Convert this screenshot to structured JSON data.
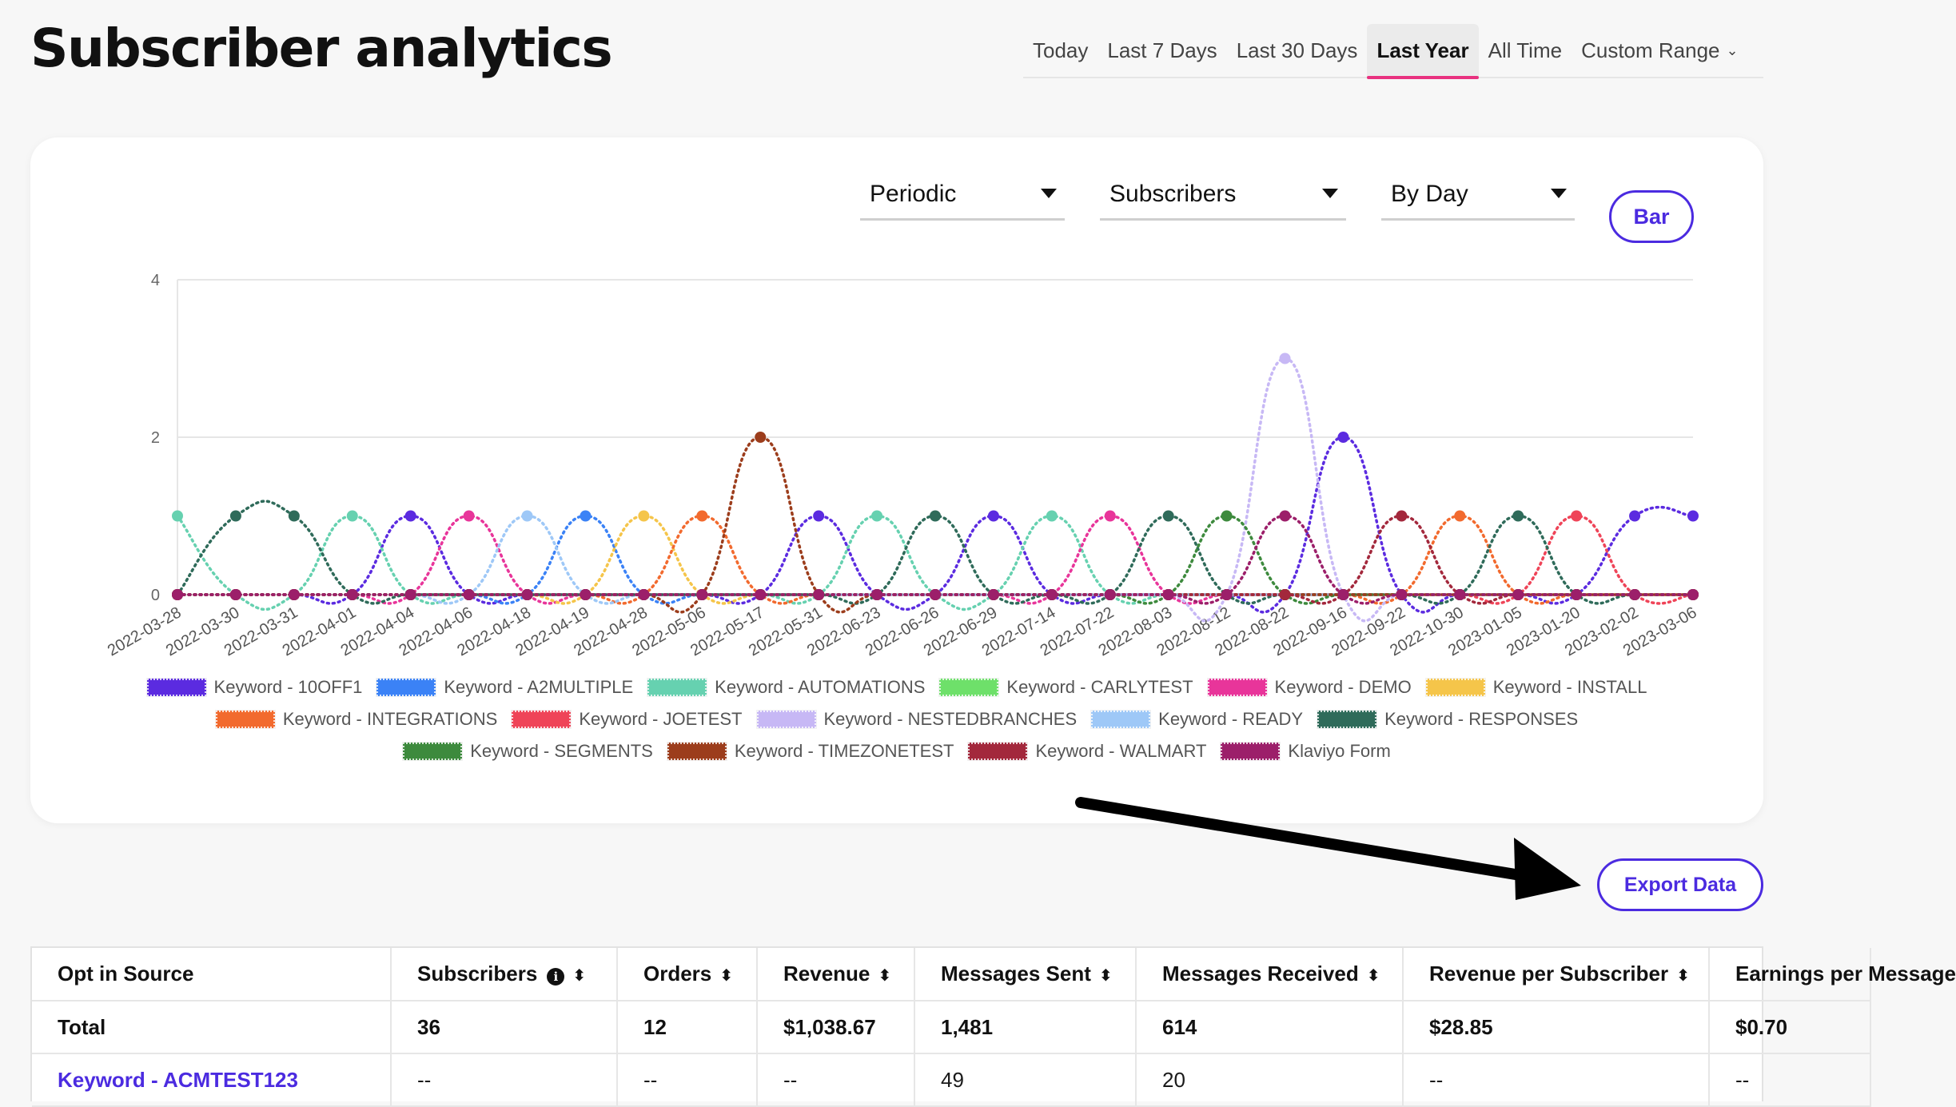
{
  "page": {
    "title": "Subscriber analytics"
  },
  "range_tabs": {
    "items": [
      {
        "label": "Today",
        "active": false
      },
      {
        "label": "Last 7 Days",
        "active": false
      },
      {
        "label": "Last 30 Days",
        "active": false
      },
      {
        "label": "Last Year",
        "active": true
      },
      {
        "label": "All Time",
        "active": false
      },
      {
        "label": "Custom Range",
        "active": false,
        "dropdown": true
      }
    ]
  },
  "controls": {
    "periodic": "Periodic",
    "metric": "Subscribers",
    "interval": "By Day",
    "chart_toggle": "Bar"
  },
  "chart_data": {
    "type": "line",
    "title": "",
    "xlabel": "",
    "ylabel": "",
    "ylim": [
      0,
      4
    ],
    "yticks": [
      "0",
      "2",
      "4"
    ],
    "categories": [
      "2022-03-28",
      "2022-03-30",
      "2022-03-31",
      "2022-04-01",
      "2022-04-04",
      "2022-04-06",
      "2022-04-18",
      "2022-04-19",
      "2022-04-28",
      "2022-05-06",
      "2022-05-17",
      "2022-05-31",
      "2022-06-23",
      "2022-06-26",
      "2022-06-29",
      "2022-07-14",
      "2022-07-22",
      "2022-08-03",
      "2022-08-12",
      "2022-08-22",
      "2022-09-16",
      "2022-09-22",
      "2022-10-30",
      "2023-01-05",
      "2023-01-20",
      "2023-02-02",
      "2023-03-06"
    ],
    "series": [
      {
        "name": "Keyword - 10OFF1",
        "color": "#5b2be0",
        "values": [
          0,
          0,
          0,
          0,
          1,
          0,
          0,
          0,
          0,
          0,
          0,
          1,
          0,
          0,
          1,
          0,
          0,
          0,
          0,
          0,
          2,
          0,
          0,
          0,
          0,
          1,
          1
        ]
      },
      {
        "name": "Keyword - A2MULTIPLE",
        "color": "#3b82f6",
        "values": [
          0,
          0,
          0,
          0,
          0,
          0,
          0,
          1,
          0,
          0,
          0,
          0,
          0,
          0,
          0,
          0,
          0,
          0,
          0,
          0,
          0,
          0,
          0,
          0,
          0,
          0,
          0
        ]
      },
      {
        "name": "Keyword - AUTOMATIONS",
        "color": "#66d1b0",
        "values": [
          1,
          0,
          0,
          1,
          0,
          0,
          0,
          0,
          0,
          0,
          0,
          0,
          1,
          0,
          0,
          1,
          0,
          0,
          0,
          0,
          0,
          0,
          0,
          0,
          0,
          0,
          0
        ]
      },
      {
        "name": "Keyword - CARLYTEST",
        "color": "#6ee06a",
        "values": [
          0,
          0,
          0,
          0,
          0,
          0,
          0,
          0,
          0,
          0,
          0,
          0,
          0,
          0,
          0,
          0,
          0,
          0,
          0,
          0,
          0,
          0,
          0,
          0,
          0,
          0,
          0
        ]
      },
      {
        "name": "Keyword - DEMO",
        "color": "#e8359a",
        "values": [
          0,
          0,
          0,
          0,
          0,
          1,
          0,
          0,
          0,
          0,
          0,
          0,
          0,
          0,
          0,
          0,
          1,
          0,
          0,
          0,
          0,
          0,
          0,
          0,
          0,
          0,
          0
        ]
      },
      {
        "name": "Keyword - INSTALL",
        "color": "#f5c54a",
        "values": [
          0,
          0,
          0,
          0,
          0,
          0,
          0,
          0,
          1,
          0,
          0,
          0,
          0,
          0,
          0,
          0,
          0,
          0,
          0,
          0,
          0,
          0,
          0,
          0,
          0,
          0,
          0
        ]
      },
      {
        "name": "Keyword - INTEGRATIONS",
        "color": "#f26a2e",
        "values": [
          0,
          0,
          0,
          0,
          0,
          0,
          0,
          0,
          0,
          1,
          0,
          0,
          0,
          0,
          0,
          0,
          0,
          0,
          0,
          0,
          0,
          0,
          1,
          0,
          0,
          0,
          0
        ]
      },
      {
        "name": "Keyword - JOETEST",
        "color": "#ef4458",
        "values": [
          0,
          0,
          0,
          0,
          0,
          0,
          0,
          0,
          0,
          0,
          0,
          0,
          0,
          0,
          0,
          0,
          0,
          0,
          0,
          0,
          0,
          0,
          0,
          0,
          1,
          0,
          0
        ]
      },
      {
        "name": "Keyword - NESTEDBRANCHES",
        "color": "#c7b8f5",
        "values": [
          0,
          0,
          0,
          0,
          0,
          0,
          0,
          0,
          0,
          0,
          0,
          0,
          0,
          0,
          0,
          0,
          0,
          0,
          0,
          3,
          0,
          0,
          0,
          0,
          0,
          0,
          0
        ]
      },
      {
        "name": "Keyword - READY",
        "color": "#9ec8f7",
        "values": [
          0,
          0,
          0,
          0,
          0,
          0,
          1,
          0,
          0,
          0,
          0,
          0,
          0,
          0,
          0,
          0,
          0,
          0,
          0,
          0,
          0,
          0,
          0,
          0,
          0,
          0,
          0
        ]
      },
      {
        "name": "Keyword - RESPONSES",
        "color": "#2f6b5a",
        "values": [
          0,
          1,
          1,
          0,
          0,
          0,
          0,
          0,
          0,
          0,
          0,
          0,
          0,
          1,
          0,
          0,
          0,
          1,
          0,
          0,
          0,
          0,
          0,
          1,
          0,
          0,
          0
        ]
      },
      {
        "name": "Keyword - SEGMENTS",
        "color": "#3d8a3d",
        "values": [
          0,
          0,
          0,
          0,
          0,
          0,
          0,
          0,
          0,
          0,
          0,
          0,
          0,
          0,
          0,
          0,
          0,
          0,
          1,
          0,
          0,
          0,
          0,
          0,
          0,
          0,
          0
        ]
      },
      {
        "name": "Keyword - TIMEZONETEST",
        "color": "#9c3d1c",
        "values": [
          0,
          0,
          0,
          0,
          0,
          0,
          0,
          0,
          0,
          0,
          2,
          0,
          0,
          0,
          0,
          0,
          0,
          0,
          0,
          0,
          0,
          0,
          0,
          0,
          0,
          0,
          0
        ]
      },
      {
        "name": "Keyword - WALMART",
        "color": "#a3283c",
        "values": [
          0,
          0,
          0,
          0,
          0,
          0,
          0,
          0,
          0,
          0,
          0,
          0,
          0,
          0,
          0,
          0,
          0,
          0,
          0,
          0,
          0,
          1,
          0,
          0,
          0,
          0,
          0
        ]
      },
      {
        "name": "Klaviyo Form",
        "color": "#9c1f6a",
        "values": [
          0,
          0,
          0,
          0,
          0,
          0,
          0,
          0,
          0,
          0,
          0,
          0,
          0,
          0,
          0,
          0,
          0,
          0,
          0,
          1,
          0,
          0,
          0,
          0,
          0,
          0,
          0
        ]
      }
    ],
    "legend_rows": [
      [
        0,
        1,
        2,
        3,
        4,
        5
      ],
      [
        6,
        7,
        8,
        9,
        10
      ],
      [
        11,
        12,
        13,
        14
      ]
    ],
    "legend_position": "bottom",
    "grid": true
  },
  "export": {
    "label": "Export Data"
  },
  "table": {
    "columns": [
      {
        "label": "Opt in Source",
        "sortable": false,
        "info": false
      },
      {
        "label": "Subscribers",
        "sortable": true,
        "info": true
      },
      {
        "label": "Orders",
        "sortable": true,
        "info": false
      },
      {
        "label": "Revenue",
        "sortable": true,
        "info": false
      },
      {
        "label": "Messages Sent",
        "sortable": true,
        "info": false
      },
      {
        "label": "Messages Received",
        "sortable": true,
        "info": false
      },
      {
        "label": "Revenue per Subscriber",
        "sortable": true,
        "info": false
      },
      {
        "label": "Earnings per Message",
        "sortable": false,
        "info": false
      }
    ],
    "rows": [
      {
        "style": "bold",
        "cells": [
          "Total",
          "36",
          "12",
          "$1,038.67",
          "1,481",
          "614",
          "$28.85",
          "$0.70"
        ]
      },
      {
        "style": "link",
        "cells": [
          "Keyword - ACMTEST123",
          "--",
          "--",
          "--",
          "49",
          "20",
          "--",
          "--"
        ]
      }
    ]
  }
}
